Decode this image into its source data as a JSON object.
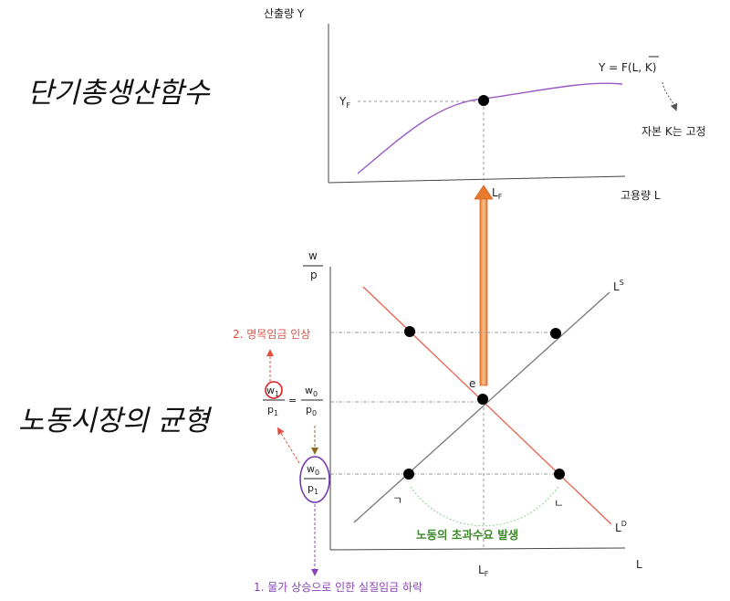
{
  "title_production": "단기총생산함수",
  "title_labor": "노동시장의 균형",
  "top": {
    "y_axis_label": "산출량 Y",
    "x_axis_label": "고용량 L",
    "yf_label": "Y",
    "yf_sub": "F",
    "lf_label": "L",
    "lf_sub": "F",
    "function_label_pre": "Y = F(L, ",
    "function_label_k": "K",
    "function_label_post": ")",
    "capital_note": "자본 K는 고정"
  },
  "bottom": {
    "y_axis_num": "w",
    "y_axis_den": "p",
    "x_axis_label": "L",
    "lf_label": "L",
    "lf_sub": "F",
    "ls_label": "L",
    "ls_sup": "S",
    "ld_label": "L",
    "ld_sup": "D",
    "equilibrium_label": "e",
    "nominal_wage_rise": "2. 명목임금 인상",
    "price_rise": "1. 물가 상승으로 인한 실질임금 하락",
    "excess_demand": "노동의 초과수요 발생",
    "mark_left": "ㄱ",
    "mark_right": "ㄴ",
    "eq_w": "w",
    "eq_w1_sub": "1",
    "eq_w0_sub": "0",
    "eq_p": "p",
    "eq_p1_sub": "1",
    "eq_p0_sub": "0",
    "eq_sign": "="
  },
  "colors": {
    "production_curve": "#9b59c6",
    "supply_curve": "#777777",
    "demand_curve": "#e8604c",
    "arrow_fill": "#f0a060",
    "red_text": "#e05040",
    "purple_text": "#8a44b8",
    "green_text": "#3d8a2a",
    "olive": "#8a6d1a",
    "red_circle": "#e02020",
    "purple_ellipse": "#7a3cb0"
  }
}
